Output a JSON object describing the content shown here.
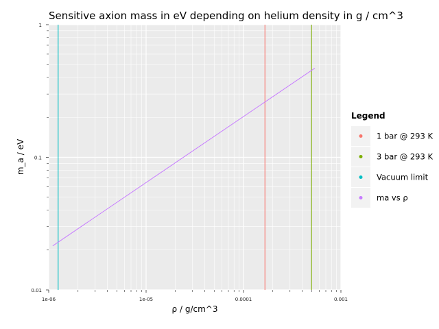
{
  "chart_data": {
    "type": "line",
    "title": "Sensitive axion mass in eV depending on helium density in g / cm^3",
    "xlabel": "ρ / g/cm^3",
    "ylabel": "m_a / eV",
    "x_scale": "log",
    "y_scale": "log",
    "xlim": [
      1e-06,
      0.001
    ],
    "ylim": [
      0.01,
      1
    ],
    "x_ticks": [
      {
        "value": 1e-06,
        "label": "1e-06"
      },
      {
        "value": 1e-05,
        "label": "1e-05"
      },
      {
        "value": 0.0001,
        "label": "0.0001"
      },
      {
        "value": 0.001,
        "label": "0.001"
      }
    ],
    "y_ticks": [
      {
        "value": 0.01,
        "label": "0.01"
      },
      {
        "value": 0.1,
        "label": "0.1"
      },
      {
        "value": 1,
        "label": "1"
      }
    ],
    "grid": true,
    "legend_title": "Legend",
    "legend_position": "right",
    "series": [
      {
        "name": "1 bar @ 293 K",
        "kind": "vline",
        "x": 0.000166,
        "color": "#f8766d"
      },
      {
        "name": "3 bar @ 293 K",
        "kind": "vline",
        "x": 0.000499,
        "color": "#7cae00"
      },
      {
        "name": "Vacuum limit",
        "kind": "vline",
        "x": 1.25e-06,
        "color": "#00bfc4"
      },
      {
        "name": "ma vs ρ",
        "kind": "line",
        "x": [
          1.1e-06,
          0.00054
        ],
        "y": [
          0.0215,
          0.47
        ],
        "color": "#c77cff"
      }
    ]
  }
}
